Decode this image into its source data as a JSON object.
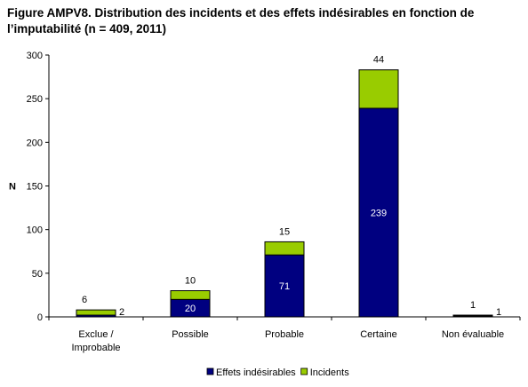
{
  "chart_data": {
    "type": "bar",
    "stacked": true,
    "title": "Figure AMPV8. Distribution des incidents et des effets indésirables en fonction de l’imputabilité (n = 409, 2011)",
    "xlabel": "",
    "ylabel": "N",
    "ylim": [
      0,
      300
    ],
    "yticks": [
      "0",
      "50",
      "100",
      "150",
      "200",
      "250",
      "300"
    ],
    "categories": [
      [
        "Exclue /",
        "Improbable"
      ],
      [
        "Possible"
      ],
      [
        "Probable"
      ],
      [
        "Certaine"
      ],
      [
        "Non évaluable"
      ]
    ],
    "series": [
      {
        "name": "Effets indésirables",
        "color": "#000080",
        "values": [
          2,
          20,
          71,
          239,
          1
        ],
        "labels": [
          "2",
          "20",
          "71",
          "239",
          "1"
        ]
      },
      {
        "name": "Incidents",
        "color": "#99CC00",
        "values": [
          6,
          10,
          15,
          44,
          1
        ],
        "labels": [
          "6",
          "10",
          "15",
          "44",
          "1"
        ]
      }
    ],
    "grid": false,
    "legend": "bottom"
  }
}
